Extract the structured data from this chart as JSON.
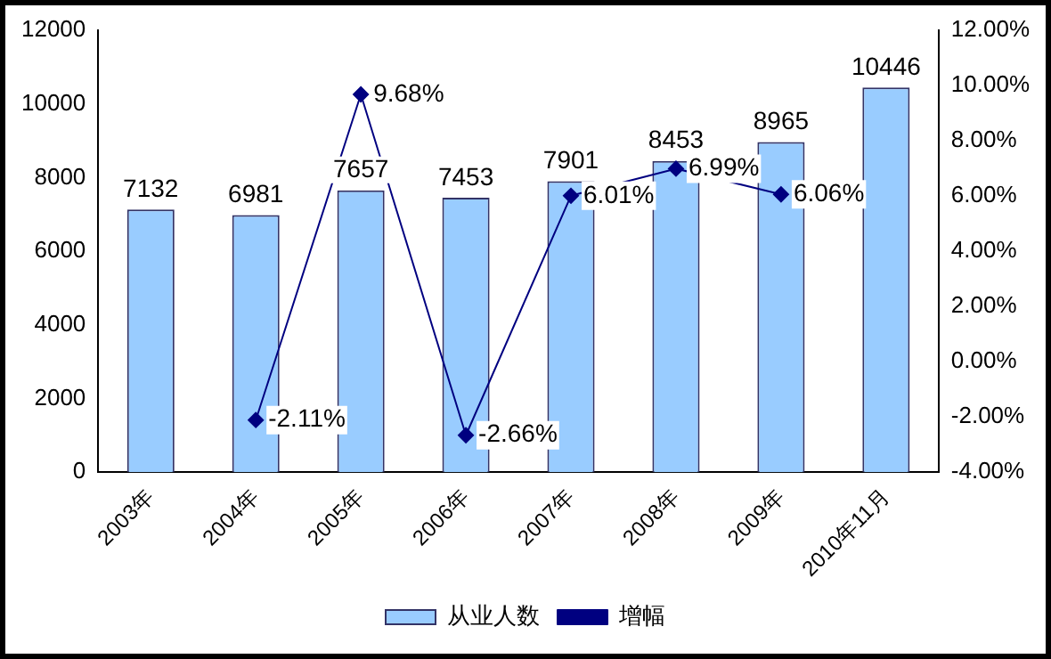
{
  "chart_data": {
    "type": "bar",
    "categories": [
      "2003年",
      "2004年",
      "2005年",
      "2006年",
      "2007年",
      "2008年",
      "2009年",
      "2010年11月"
    ],
    "series": [
      {
        "name": "从业人数",
        "color": "#99ccff",
        "values": [
          7132,
          6981,
          7657,
          7453,
          7901,
          8453,
          8965,
          10446
        ],
        "value_labels": [
          "7132",
          "6981",
          "7657",
          "7453",
          "7901",
          "8453",
          "8965",
          "10446"
        ]
      },
      {
        "name": "增幅",
        "type": "line",
        "axis": "y2",
        "color": "#000080",
        "values": [
          null,
          -2.11,
          9.68,
          -2.66,
          6.01,
          6.99,
          6.06,
          null
        ],
        "value_labels": [
          null,
          "-2.11%",
          "9.68%",
          "-2.66%",
          "6.01%",
          "6.99%",
          "6.06%",
          null
        ]
      }
    ],
    "ylim": [
      0,
      12000
    ],
    "yticks": [
      0,
      2000,
      4000,
      6000,
      8000,
      10000,
      12000
    ],
    "y2lim": [
      -4,
      12
    ],
    "y2ticks": [
      {
        "value": -4,
        "label": "-4.00%"
      },
      {
        "value": -2,
        "label": "-2.00%"
      },
      {
        "value": 0,
        "label": "0.00%"
      },
      {
        "value": 2,
        "label": "2.00%"
      },
      {
        "value": 4,
        "label": "4.00%"
      },
      {
        "value": 6,
        "label": "6.00%"
      },
      {
        "value": 8,
        "label": "8.00%"
      },
      {
        "value": 10,
        "label": "10.00%"
      },
      {
        "value": 12,
        "label": "12.00%"
      }
    ],
    "grid": false,
    "legend": "bottom",
    "marker": "diamond",
    "line_style": "solid"
  }
}
